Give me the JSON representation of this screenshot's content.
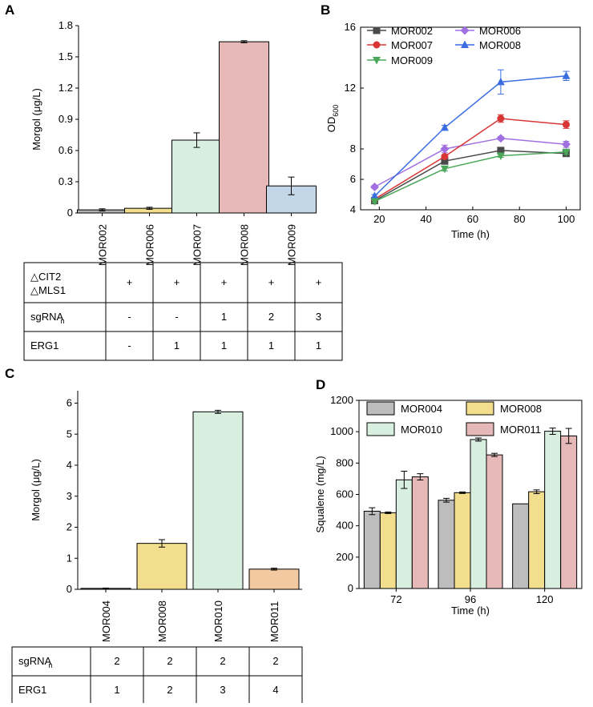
{
  "panels": {
    "A": {
      "letter": "A",
      "chart_data": {
        "type": "bar",
        "categories": [
          "MOR002",
          "MOR006",
          "MOR007",
          "MOR008",
          "MOR009"
        ],
        "values": [
          0.03,
          0.045,
          0.7,
          1.645,
          0.26
        ],
        "errors": [
          0.01,
          0.01,
          0.07,
          0.01,
          0.085
        ],
        "colors": [
          "#b0b0b0",
          "#f2de8c",
          "#d8efe0",
          "#e6b8b8",
          "#c3d6e8"
        ],
        "ylabel": "Morgol (μg/L)",
        "ylim": [
          0,
          1.8
        ],
        "yticks": [
          0,
          0.3,
          0.6,
          0.9,
          1.2,
          1.5,
          1.8
        ],
        "ytick_labels": [
          "0",
          "0.3",
          "0.6",
          "0.9",
          "1.2",
          "1.5",
          "1.8"
        ]
      },
      "table": {
        "rows": [
          {
            "label_lines": [
              "△CIT2",
              "△MLS1"
            ],
            "values": [
              "+",
              "+",
              "+",
              "+",
              "+"
            ]
          },
          {
            "label": "sgRNA",
            "label_sub": "n",
            "values": [
              "-",
              "-",
              "1",
              "2",
              "3"
            ]
          },
          {
            "label": "ERG1",
            "values": [
              "-",
              "1",
              "1",
              "1",
              "1"
            ]
          }
        ]
      }
    },
    "B": {
      "letter": "B",
      "chart_data": {
        "type": "line",
        "x": [
          18,
          48,
          72,
          100
        ],
        "series": [
          {
            "name": "MOR002",
            "color": "#4a4a4a",
            "marker": "square",
            "values": [
              4.6,
              7.2,
              7.9,
              7.7
            ],
            "errors": [
              0.1,
              0.15,
              0.1,
              0.1
            ]
          },
          {
            "name": "MOR006",
            "color": "#a070e0",
            "marker": "diamond",
            "values": [
              5.5,
              8.0,
              8.7,
              8.3
            ],
            "errors": [
              0.1,
              0.25,
              0.1,
              0.2
            ]
          },
          {
            "name": "MOR007",
            "color": "#d93535",
            "marker": "circle",
            "values": [
              4.7,
              7.5,
              10.0,
              9.6
            ],
            "errors": [
              0.1,
              0.1,
              0.25,
              0.25
            ]
          },
          {
            "name": "MOR008",
            "color": "#3a6ee0",
            "marker": "triangle-up",
            "values": [
              4.9,
              9.4,
              12.4,
              12.8
            ],
            "errors": [
              0.1,
              0.15,
              0.8,
              0.3
            ]
          },
          {
            "name": "MOR009",
            "color": "#4aa85a",
            "marker": "triangle-down",
            "values": [
              4.55,
              6.7,
              7.55,
              7.8
            ],
            "errors": [
              0.1,
              0.15,
              0.1,
              0.15
            ]
          }
        ],
        "legend_order": [
          "MOR002",
          "MOR006",
          "MOR007",
          "MOR008",
          "MOR009"
        ],
        "xlabel": "Time (h)",
        "ylabel": "OD",
        "ylabel_sub": "600",
        "xlim": [
          12,
          106
        ],
        "ylim": [
          4,
          16
        ],
        "xticks": [
          20,
          40,
          60,
          80,
          100
        ],
        "yticks": [
          4,
          6,
          8,
          12,
          16
        ],
        "ytick_labels": [
          "4",
          "6",
          "8",
          "12",
          "16"
        ]
      }
    },
    "C": {
      "letter": "C",
      "chart_data": {
        "type": "bar",
        "categories": [
          "MOR004",
          "MOR008",
          "MOR010",
          "MOR011"
        ],
        "values": [
          0.03,
          1.48,
          5.72,
          0.65
        ],
        "errors": [
          0.01,
          0.12,
          0.05,
          0.03
        ],
        "colors": [
          "#b0b0b0",
          "#f2de8c",
          "#d8efe0",
          "#f2c9a0"
        ],
        "ylabel": "Morgol (μg/L)",
        "ylim": [
          0,
          6.4
        ],
        "yticks": [
          0,
          1,
          2,
          3,
          4,
          5,
          6
        ],
        "ytick_labels": [
          "0",
          "1",
          "2",
          "3",
          "4",
          "5",
          "6"
        ]
      },
      "table": {
        "rows": [
          {
            "label": "sgRNA",
            "label_sub": "n",
            "values": [
              "2",
              "2",
              "2",
              "2"
            ]
          },
          {
            "label": "ERG1",
            "values": [
              "1",
              "2",
              "3",
              "4"
            ]
          }
        ]
      }
    },
    "D": {
      "letter": "D",
      "chart_data": {
        "type": "bar",
        "categories": [
          "72",
          "96",
          "120"
        ],
        "series": [
          {
            "name": "MOR004",
            "color": "#bdbdbd",
            "values": [
              493,
              563,
              540
            ],
            "errors": [
              22,
              12,
              0
            ]
          },
          {
            "name": "MOR008",
            "color": "#f2de8c",
            "values": [
              483,
              611,
              617
            ],
            "errors": [
              5,
              5,
              12
            ]
          },
          {
            "name": "MOR010",
            "color": "#d8efe0",
            "values": [
              693,
              950,
              1003
            ],
            "errors": [
              55,
              10,
              20
            ]
          },
          {
            "name": "MOR011",
            "color": "#e6b8b8",
            "values": [
              712,
              852,
              973
            ],
            "errors": [
              20,
              10,
              48
            ]
          }
        ],
        "xlabel": "Time (h)",
        "ylabel": "Squalene (mg/L)",
        "ylim": [
          0,
          1200
        ],
        "yticks": [
          0,
          200,
          400,
          600,
          800,
          1000,
          1200
        ],
        "ytick_labels": [
          "0",
          "200",
          "400",
          "600",
          "800",
          "1000",
          "1200"
        ]
      }
    }
  }
}
